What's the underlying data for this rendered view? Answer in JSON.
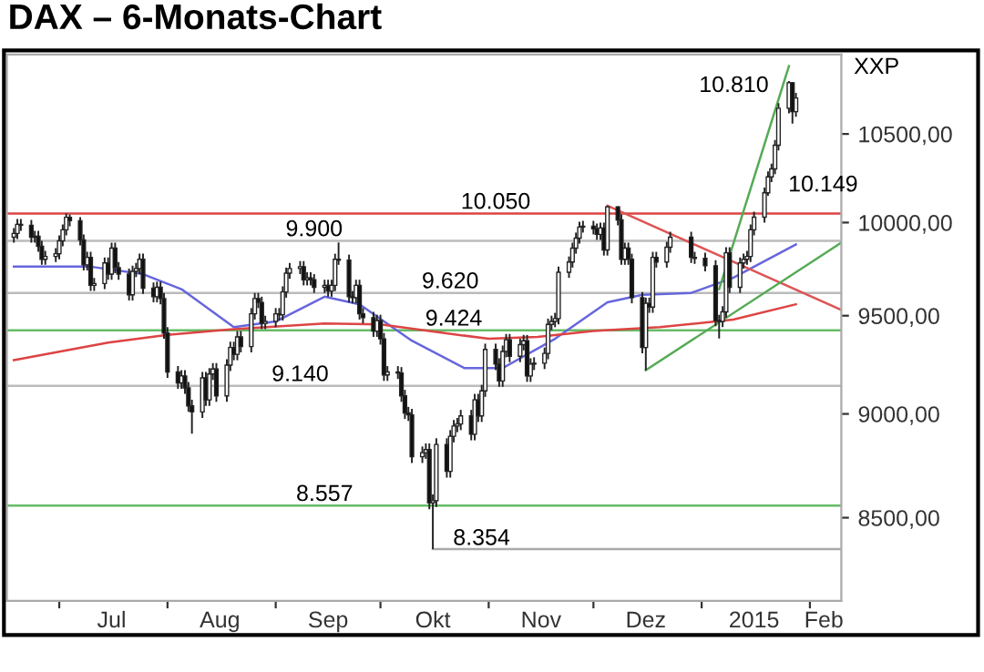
{
  "chart_data": {
    "type": "candlestick",
    "title": "DAX – 6-Monats-Chart",
    "ylabel": "XXP",
    "x": [
      "2014-06-18",
      "2014-06-19",
      "2014-06-20",
      "2014-06-23",
      "2014-06-24",
      "2014-06-25",
      "2014-06-26",
      "2014-06-27",
      "2014-06-30",
      "2014-07-01",
      "2014-07-02",
      "2014-07-03",
      "2014-07-04",
      "2014-07-07",
      "2014-07-08",
      "2014-07-09",
      "2014-07-10",
      "2014-07-11",
      "2014-07-14",
      "2014-07-15",
      "2014-07-16",
      "2014-07-17",
      "2014-07-18",
      "2014-07-21",
      "2014-07-22",
      "2014-07-23",
      "2014-07-24",
      "2014-07-25",
      "2014-07-28",
      "2014-07-29",
      "2014-07-30",
      "2014-07-31",
      "2014-08-01",
      "2014-08-04",
      "2014-08-05",
      "2014-08-06",
      "2014-08-07",
      "2014-08-08",
      "2014-08-11",
      "2014-08-12",
      "2014-08-13",
      "2014-08-14",
      "2014-08-15",
      "2014-08-18",
      "2014-08-19",
      "2014-08-20",
      "2014-08-21",
      "2014-08-22",
      "2014-08-25",
      "2014-08-26",
      "2014-08-27",
      "2014-08-28",
      "2014-08-29",
      "2014-09-01",
      "2014-09-02",
      "2014-09-03",
      "2014-09-04",
      "2014-09-05",
      "2014-09-08",
      "2014-09-09",
      "2014-09-10",
      "2014-09-11",
      "2014-09-12",
      "2014-09-15",
      "2014-09-16",
      "2014-09-17",
      "2014-09-18",
      "2014-09-19",
      "2014-09-22",
      "2014-09-23",
      "2014-09-24",
      "2014-09-25",
      "2014-09-26",
      "2014-09-29",
      "2014-09-30",
      "2014-10-01",
      "2014-10-02",
      "2014-10-03",
      "2014-10-06",
      "2014-10-07",
      "2014-10-08",
      "2014-10-09",
      "2014-10-10",
      "2014-10-13",
      "2014-10-14",
      "2014-10-15",
      "2014-10-16",
      "2014-10-17",
      "2014-10-20",
      "2014-10-21",
      "2014-10-22",
      "2014-10-23",
      "2014-10-24",
      "2014-10-27",
      "2014-10-28",
      "2014-10-29",
      "2014-10-30",
      "2014-10-31",
      "2014-11-03",
      "2014-11-04",
      "2014-11-05",
      "2014-11-06",
      "2014-11-07",
      "2014-11-10",
      "2014-11-11",
      "2014-11-12",
      "2014-11-13",
      "2014-11-14",
      "2014-11-17",
      "2014-11-18",
      "2014-11-19",
      "2014-11-20",
      "2014-11-21",
      "2014-11-24",
      "2014-11-25",
      "2014-11-26",
      "2014-11-27",
      "2014-11-28",
      "2014-12-01",
      "2014-12-02",
      "2014-12-03",
      "2014-12-04",
      "2014-12-05",
      "2014-12-08",
      "2014-12-09",
      "2014-12-10",
      "2014-12-11",
      "2014-12-12",
      "2014-12-15",
      "2014-12-16",
      "2014-12-17",
      "2014-12-18",
      "2014-12-19",
      "2014-12-22",
      "2014-12-23",
      "2014-12-29",
      "2014-12-30",
      "2015-01-02",
      "2015-01-05",
      "2015-01-06",
      "2015-01-07",
      "2015-01-08",
      "2015-01-09",
      "2015-01-12",
      "2015-01-13",
      "2015-01-14",
      "2015-01-15",
      "2015-01-16",
      "2015-01-19",
      "2015-01-20",
      "2015-01-21",
      "2015-01-22",
      "2015-01-23",
      "2015-01-26",
      "2015-01-27",
      "2015-01-28"
    ],
    "ohlc": [
      [
        9920,
        9970,
        9890,
        9940
      ],
      [
        9940,
        10020,
        9910,
        9990
      ],
      [
        9990,
        10020,
        9955,
        9985
      ],
      [
        9985,
        10015,
        9890,
        9920
      ],
      [
        9920,
        9955,
        9890,
        9925
      ],
      [
        9925,
        9955,
        9840,
        9870
      ],
      [
        9870,
        9900,
        9770,
        9800
      ],
      [
        9800,
        9845,
        9770,
        9815
      ],
      [
        9815,
        9860,
        9785,
        9830
      ],
      [
        9830,
        9930,
        9800,
        9900
      ],
      [
        9900,
        9990,
        9870,
        9960
      ],
      [
        9960,
        10050,
        9930,
        10029
      ],
      [
        10029,
        10045,
        9980,
        10010
      ],
      [
        10010,
        10030,
        9875,
        9905
      ],
      [
        9905,
        9935,
        9740,
        9770
      ],
      [
        9770,
        9840,
        9740,
        9810
      ],
      [
        9810,
        9840,
        9630,
        9660
      ],
      [
        9660,
        9700,
        9630,
        9670
      ],
      [
        9670,
        9810,
        9640,
        9780
      ],
      [
        9780,
        9810,
        9690,
        9720
      ],
      [
        9720,
        9890,
        9690,
        9860
      ],
      [
        9860,
        9890,
        9725,
        9755
      ],
      [
        9755,
        9785,
        9690,
        9720
      ],
      [
        9720,
        9750,
        9580,
        9610
      ],
      [
        9610,
        9765,
        9580,
        9735
      ],
      [
        9735,
        9780,
        9705,
        9750
      ],
      [
        9750,
        9830,
        9720,
        9800
      ],
      [
        9800,
        9830,
        9615,
        9645
      ],
      [
        9645,
        9675,
        9570,
        9600
      ],
      [
        9600,
        9680,
        9570,
        9650
      ],
      [
        9650,
        9680,
        9560,
        9590
      ],
      [
        9590,
        9620,
        9380,
        9410
      ],
      [
        9410,
        9440,
        9180,
        9210
      ],
      [
        9210,
        9240,
        9125,
        9155
      ],
      [
        9155,
        9220,
        9125,
        9190
      ],
      [
        9190,
        9220,
        9100,
        9130
      ],
      [
        9130,
        9160,
        9010,
        9040
      ],
      [
        9040,
        9070,
        8903,
        9010
      ],
      [
        9010,
        9210,
        8980,
        9180
      ],
      [
        9180,
        9210,
        9040,
        9070
      ],
      [
        9070,
        9230,
        9040,
        9200
      ],
      [
        9200,
        9255,
        9170,
        9225
      ],
      [
        9225,
        9255,
        9060,
        9090
      ],
      [
        9090,
        9275,
        9060,
        9245
      ],
      [
        9245,
        9365,
        9215,
        9335
      ],
      [
        9335,
        9365,
        9270,
        9300
      ],
      [
        9300,
        9420,
        9270,
        9390
      ],
      [
        9390,
        9420,
        9310,
        9340
      ],
      [
        9340,
        9540,
        9310,
        9510
      ],
      [
        9510,
        9620,
        9480,
        9590
      ],
      [
        9590,
        9620,
        9540,
        9570
      ],
      [
        9570,
        9600,
        9430,
        9460
      ],
      [
        9460,
        9500,
        9430,
        9470
      ],
      [
        9470,
        9540,
        9440,
        9510
      ],
      [
        9510,
        9540,
        9475,
        9505
      ],
      [
        9505,
        9655,
        9475,
        9625
      ],
      [
        9625,
        9755,
        9595,
        9725
      ],
      [
        9725,
        9780,
        9695,
        9750
      ],
      [
        9750,
        9790,
        9720,
        9760
      ],
      [
        9760,
        9790,
        9660,
        9690
      ],
      [
        9690,
        9730,
        9660,
        9700
      ],
      [
        9700,
        9730,
        9660,
        9690
      ],
      [
        9690,
        9720,
        9620,
        9650
      ],
      [
        9650,
        9690,
        9620,
        9660
      ],
      [
        9660,
        9690,
        9600,
        9630
      ],
      [
        9630,
        9690,
        9600,
        9660
      ],
      [
        9660,
        9830,
        9630,
        9800
      ],
      [
        9800,
        9891,
        9770,
        9795
      ],
      [
        9795,
        9825,
        9570,
        9600
      ],
      [
        9600,
        9630,
        9565,
        9595
      ],
      [
        9595,
        9690,
        9565,
        9660
      ],
      [
        9660,
        9690,
        9480,
        9510
      ],
      [
        9510,
        9540,
        9460,
        9490
      ],
      [
        9490,
        9520,
        9390,
        9420
      ],
      [
        9420,
        9505,
        9390,
        9475
      ],
      [
        9475,
        9505,
        9350,
        9380
      ],
      [
        9380,
        9410,
        9165,
        9195
      ],
      [
        9195,
        9240,
        9165,
        9210
      ],
      [
        9210,
        9240,
        9175,
        9205
      ],
      [
        9205,
        9235,
        9060,
        9090
      ],
      [
        9090,
        9120,
        8975,
        9005
      ],
      [
        9005,
        9035,
        8965,
        8995
      ],
      [
        8995,
        9025,
        8760,
        8790
      ],
      [
        8790,
        8840,
        8760,
        8810
      ],
      [
        8810,
        8855,
        8780,
        8825
      ],
      [
        8825,
        8855,
        8540,
        8570
      ],
      [
        8570,
        8610,
        8354,
        8580
      ],
      [
        8580,
        8880,
        8550,
        8850
      ],
      [
        8850,
        8880,
        8690,
        8720
      ],
      [
        8720,
        8920,
        8690,
        8890
      ],
      [
        8890,
        8970,
        8860,
        8940
      ],
      [
        8940,
        8980,
        8910,
        8950
      ],
      [
        8950,
        9020,
        8920,
        8990
      ],
      [
        8990,
        9020,
        8870,
        8900
      ],
      [
        8900,
        9100,
        8870,
        9070
      ],
      [
        9070,
        9100,
        8960,
        8990
      ],
      [
        8990,
        9145,
        8960,
        9115
      ],
      [
        9115,
        9355,
        9085,
        9325
      ],
      [
        9325,
        9355,
        9220,
        9250
      ],
      [
        9250,
        9280,
        9135,
        9165
      ],
      [
        9165,
        9345,
        9135,
        9315
      ],
      [
        9315,
        9405,
        9285,
        9375
      ],
      [
        9375,
        9405,
        9260,
        9290
      ],
      [
        9290,
        9380,
        9260,
        9350
      ],
      [
        9350,
        9400,
        9320,
        9370
      ],
      [
        9370,
        9400,
        9160,
        9190
      ],
      [
        9190,
        9280,
        9160,
        9250
      ],
      [
        9250,
        9285,
        9220,
        9255
      ],
      [
        9255,
        9335,
        9225,
        9305
      ],
      [
        9305,
        9485,
        9275,
        9455
      ],
      [
        9455,
        9500,
        9425,
        9470
      ],
      [
        9470,
        9515,
        9440,
        9485
      ],
      [
        9485,
        9760,
        9455,
        9730
      ],
      [
        9730,
        9815,
        9700,
        9785
      ],
      [
        9785,
        9890,
        9755,
        9860
      ],
      [
        9860,
        9945,
        9830,
        9915
      ],
      [
        9915,
        10005,
        9885,
        9975
      ],
      [
        9975,
        10010,
        9945,
        9980
      ],
      [
        9980,
        10010,
        9935,
        9965
      ],
      [
        9965,
        9995,
        9905,
        9935
      ],
      [
        9935,
        10000,
        9905,
        9970
      ],
      [
        9970,
        10000,
        9820,
        9850
      ],
      [
        9850,
        10093,
        9820,
        10087
      ],
      [
        10087,
        10090,
        9985,
        10015
      ],
      [
        10015,
        10045,
        9770,
        9800
      ],
      [
        9800,
        9890,
        9770,
        9860
      ],
      [
        9860,
        9890,
        9770,
        9800
      ],
      [
        9800,
        9830,
        9565,
        9595
      ],
      [
        9595,
        9625,
        9305,
        9335
      ],
      [
        9335,
        9595,
        9219,
        9565
      ],
      [
        9565,
        9595,
        9515,
        9545
      ],
      [
        9545,
        9840,
        9515,
        9810
      ],
      [
        9810,
        9840,
        9755,
        9785
      ],
      [
        9785,
        9895,
        9755,
        9865
      ],
      [
        9865,
        9950,
        9835,
        9920
      ],
      [
        9920,
        9950,
        9780,
        9810
      ],
      [
        9810,
        9840,
        9775,
        9805
      ],
      [
        9805,
        9835,
        9735,
        9765
      ],
      [
        9765,
        9795,
        9445,
        9475
      ],
      [
        9475,
        9505,
        9382,
        9470
      ],
      [
        9470,
        9550,
        9440,
        9520
      ],
      [
        9520,
        9865,
        9490,
        9835
      ],
      [
        9835,
        9865,
        9620,
        9650
      ],
      [
        9650,
        9810,
        9620,
        9780
      ],
      [
        9780,
        9830,
        9750,
        9800
      ],
      [
        9800,
        9845,
        9770,
        9815
      ],
      [
        9815,
        9990,
        9785,
        9960
      ],
      [
        9960,
        10060,
        9930,
        10030
      ],
      [
        10030,
        10195,
        10000,
        10165
      ],
      [
        10165,
        10285,
        10149,
        10255
      ],
      [
        10255,
        10330,
        10225,
        10300
      ],
      [
        10300,
        10465,
        10270,
        10435
      ],
      [
        10435,
        10680,
        10405,
        10650
      ],
      [
        10650,
        10810,
        10620,
        10800
      ],
      [
        10800,
        10805,
        10560,
        10630
      ],
      [
        10630,
        10740,
        10600,
        10710
      ]
    ],
    "series": [
      {
        "type": "line",
        "color": "#6666dd",
        "x": [
          "2014-06-18",
          "2014-07-10",
          "2014-07-25",
          "2014-08-05",
          "2014-08-20",
          "2014-09-01",
          "2014-09-15",
          "2014-09-25",
          "2014-10-10",
          "2014-10-25",
          "2014-11-05",
          "2014-11-20",
          "2014-12-05",
          "2014-12-15",
          "2014-12-29",
          "2015-01-10",
          "2015-01-28"
        ],
        "values": [
          9760,
          9760,
          9720,
          9640,
          9440,
          9470,
          9600,
          9560,
          9370,
          9230,
          9230,
          9380,
          9570,
          9610,
          9620,
          9700,
          9880
        ]
      },
      {
        "type": "line",
        "color": "#dd4444",
        "x": [
          "2014-06-18",
          "2014-07-15",
          "2014-08-01",
          "2014-08-20",
          "2014-09-15",
          "2014-10-01",
          "2014-10-15",
          "2014-11-01",
          "2014-11-15",
          "2014-12-01",
          "2014-12-20",
          "2015-01-10",
          "2015-01-28"
        ],
        "values": [
          9270,
          9360,
          9400,
          9430,
          9460,
          9455,
          9420,
          9380,
          9390,
          9420,
          9440,
          9480,
          9560
        ]
      },
      {
        "type": "line",
        "color": "#dd5555",
        "x": [
          "2014-12-05",
          "2015-02-10"
        ],
        "values": [
          10093,
          9530
        ]
      },
      {
        "type": "line",
        "color": "#55aa55",
        "x": [
          "2014-12-16",
          "2015-02-10"
        ],
        "values": [
          9219,
          9890
        ]
      },
      {
        "type": "line",
        "color": "#55aa55",
        "x": [
          "2015-01-06",
          "2015-01-26"
        ],
        "values": [
          9640,
          10900
        ]
      },
      {
        "type": "line",
        "color": "#aaaaaa",
        "x": [
          "2014-10-16",
          "2015-02-10"
        ],
        "values": [
          8354,
          8354
        ]
      }
    ],
    "ref_lines": [
      {
        "axis": "y",
        "value": 10050,
        "color": "#dd4444"
      },
      {
        "axis": "y",
        "value": 9900,
        "color": "#bbbbbb"
      },
      {
        "axis": "y",
        "value": 9620,
        "color": "#bbbbbb"
      },
      {
        "axis": "y",
        "value": 9424,
        "color": "#66bb66"
      },
      {
        "axis": "y",
        "value": 9140,
        "color": "#bbbbbb"
      },
      {
        "axis": "y",
        "value": 8557,
        "color": "#66bb66"
      }
    ],
    "annotations": [
      {
        "text": "10.050",
        "x": "2014-11-03",
        "y": 10050
      },
      {
        "text": "9.900",
        "x": "2014-09-12",
        "y": 9900
      },
      {
        "text": "9.620",
        "x": "2014-10-21",
        "y": 9620
      },
      {
        "text": "9.424",
        "x": "2014-10-22",
        "y": 9424
      },
      {
        "text": "9.140",
        "x": "2014-09-08",
        "y": 9140
      },
      {
        "text": "8.557",
        "x": "2014-09-15",
        "y": 8557
      },
      {
        "text": "8.354",
        "x": "2014-10-16",
        "y": 8354
      },
      {
        "text": "10.810",
        "x": "2015-01-26",
        "y": 10810
      },
      {
        "text": "10.149",
        "x": "2015-01-20",
        "y": 10149
      }
    ],
    "log": "y",
    "xlim": [
      "2014-06-16",
      "2015-02-10"
    ],
    "xticks": [
      {
        "value": "2014-07-01",
        "label": null
      },
      {
        "value": "2014-07-16",
        "label": "Jul"
      },
      {
        "value": "2014-08-01",
        "label": null
      },
      {
        "value": "2014-08-16",
        "label": "Aug"
      },
      {
        "value": "2014-09-01",
        "label": null
      },
      {
        "value": "2014-09-16",
        "label": "Sep"
      },
      {
        "value": "2014-10-01",
        "label": null
      },
      {
        "value": "2014-10-16",
        "label": "Okt"
      },
      {
        "value": "2014-11-01",
        "label": null
      },
      {
        "value": "2014-11-16",
        "label": "Nov"
      },
      {
        "value": "2014-12-01",
        "label": null
      },
      {
        "value": "2014-12-16",
        "label": "Dez"
      },
      {
        "value": "2015-01-01",
        "label": null
      },
      {
        "value": "2015-01-16",
        "label": "2015"
      },
      {
        "value": "2015-02-01",
        "label": null
      },
      {
        "value": "2015-02-05",
        "label": "Feb"
      }
    ],
    "ylim": [
      8120,
      10970
    ],
    "yticks": [
      {
        "value": 8500,
        "label": "8500,00"
      },
      {
        "value": 9000,
        "label": "9000,00"
      },
      {
        "value": 9500,
        "label": "9500,00"
      },
      {
        "value": 10000,
        "label": "10000,00"
      },
      {
        "value": 10500,
        "label": "10500,00"
      }
    ],
    "grid": false
  }
}
